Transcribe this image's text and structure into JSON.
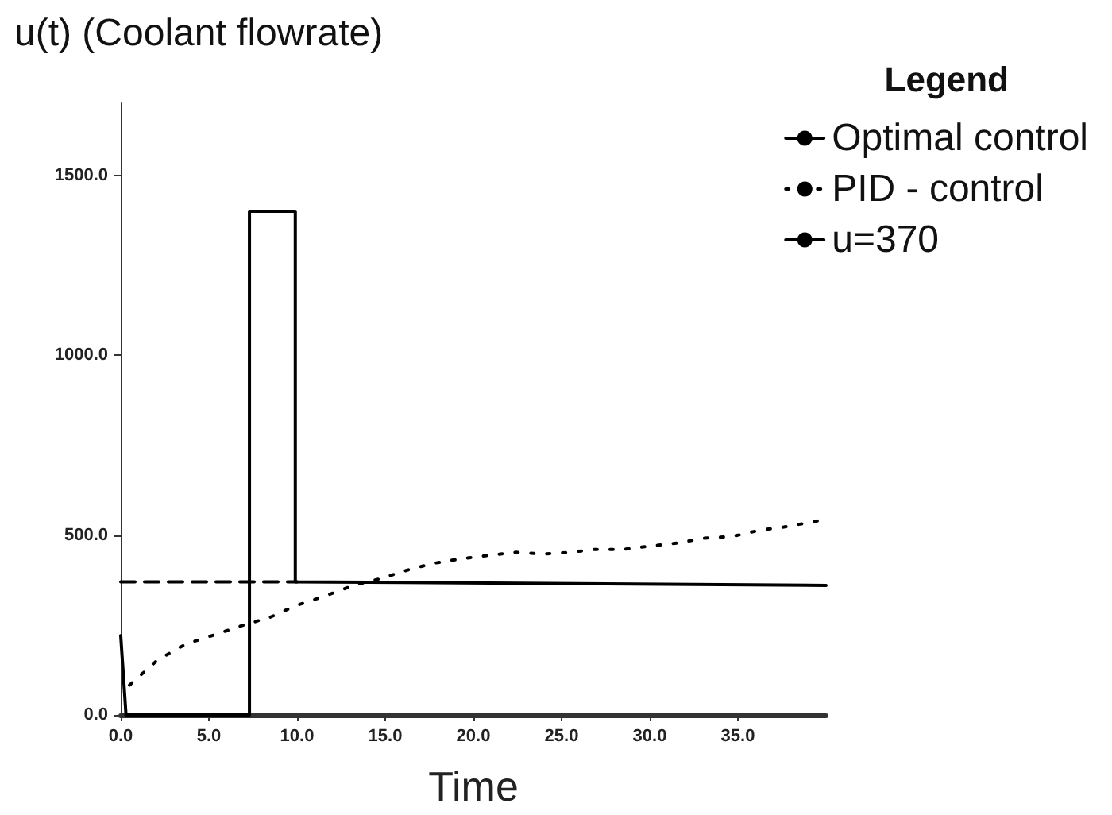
{
  "chart_data": {
    "type": "line",
    "title": "u(t) (Coolant flowrate)",
    "xlabel": "Time",
    "legend_title": "Legend",
    "series": [
      {
        "name": "Optimal control",
        "color": "#000000",
        "line_style": "solid",
        "x": [
          0,
          0.3,
          7.3,
          7.3,
          9.9,
          9.9,
          40
        ],
        "values": [
          220,
          0,
          0,
          1400,
          1400,
          370,
          360
        ]
      },
      {
        "name": "PID - control",
        "color": "#000000",
        "line_style": "dotted",
        "x": [
          0.5,
          2.1,
          3.7,
          5.4,
          7.0,
          8.5,
          9.9,
          11.5,
          13.2,
          14.6,
          16.3,
          17.7,
          19.3,
          20.8,
          22.4,
          23.9,
          25.5,
          26.9,
          28.5,
          30.0,
          31.6,
          33.1,
          34.7,
          36.2,
          37.6,
          39.5
        ],
        "values": [
          83,
          153,
          197,
          224,
          250,
          272,
          303,
          329,
          360,
          377,
          403,
          421,
          434,
          443,
          452,
          447,
          452,
          460,
          460,
          469,
          478,
          491,
          496,
          513,
          522,
          539
        ]
      },
      {
        "name": "u=370",
        "color": "#000000",
        "line_style": "dashed",
        "x": [
          0,
          10
        ],
        "values": [
          370,
          370
        ]
      }
    ],
    "xlim": [
      0,
      40
    ],
    "xticks": [
      {
        "value": 0,
        "label": "0.0"
      },
      {
        "value": 5,
        "label": "5.0"
      },
      {
        "value": 10,
        "label": "10.0"
      },
      {
        "value": 15,
        "label": "15.0"
      },
      {
        "value": 20,
        "label": "20.0"
      },
      {
        "value": 25,
        "label": "25.0"
      },
      {
        "value": 30,
        "label": "30.0"
      },
      {
        "value": 35,
        "label": "35.0"
      }
    ],
    "ylim": [
      0,
      1700
    ],
    "yticks": [
      {
        "value": 0,
        "label": "0.0"
      },
      {
        "value": 500,
        "label": "500.0"
      },
      {
        "value": 1000,
        "label": "1000.0"
      },
      {
        "value": 1500,
        "label": "1500.0"
      }
    ],
    "grid": false,
    "legend": "top right",
    "marker": "none"
  }
}
